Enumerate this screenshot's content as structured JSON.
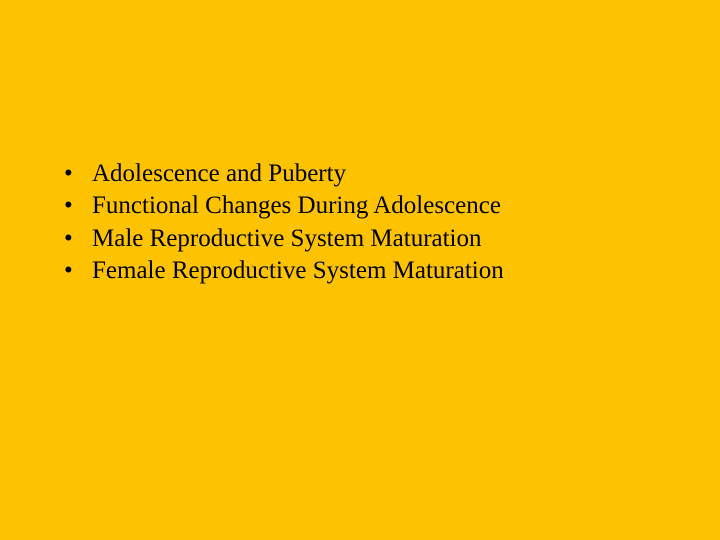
{
  "slide": {
    "background_color": "#fdc200",
    "text_color": "#000000",
    "font_family": "Times New Roman",
    "font_size_pt": 25,
    "bullets": [
      "Adolescence and Puberty",
      "Functional Changes During Adolescence",
      "Male Reproductive System Maturation",
      "Female Reproductive System Maturation"
    ]
  }
}
